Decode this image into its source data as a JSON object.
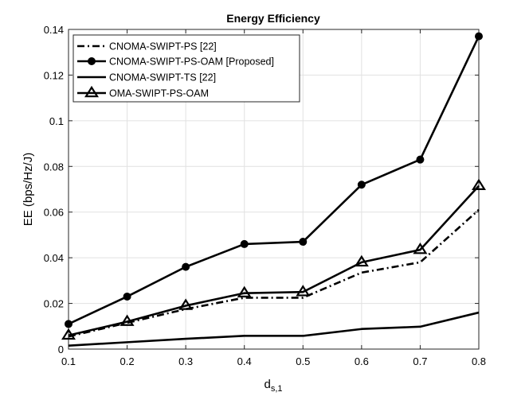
{
  "chart_data": {
    "type": "line",
    "title": "Energy Efficiency",
    "xlabel_main": "d",
    "xlabel_sub": "s,1",
    "ylabel": "EE (bps/Hz/J)",
    "x": [
      0.1,
      0.2,
      0.3,
      0.4,
      0.5,
      0.6,
      0.7,
      0.8
    ],
    "xlim": [
      0.1,
      0.8
    ],
    "ylim": [
      0,
      0.14
    ],
    "xticks": [
      "0.1",
      "0.2",
      "0.3",
      "0.4",
      "0.5",
      "0.6",
      "0.7",
      "0.8"
    ],
    "yticks": [
      "0",
      "0.02",
      "0.04",
      "0.06",
      "0.08",
      "0.1",
      "0.12",
      "0.14"
    ],
    "grid": true,
    "legend_position": "top-left",
    "series": [
      {
        "name": "CNOMA-SWIPT-PS [22]",
        "style": "dashdot",
        "marker": "none",
        "values": [
          0.0055,
          0.0115,
          0.0175,
          0.0225,
          0.0225,
          0.0335,
          0.038,
          0.061
        ]
      },
      {
        "name": "CNOMA-SWIPT-PS-OAM [Proposed]",
        "style": "solid",
        "marker": "circle",
        "values": [
          0.011,
          0.023,
          0.036,
          0.046,
          0.047,
          0.072,
          0.083,
          0.137
        ]
      },
      {
        "name": "CNOMA-SWIPT-TS [22]",
        "style": "solid",
        "marker": "none",
        "values": [
          0.0015,
          0.003,
          0.0045,
          0.0058,
          0.0058,
          0.0088,
          0.0098,
          0.016
        ]
      },
      {
        "name": "OMA-SWIPT-PS-OAM",
        "style": "solid",
        "marker": "triangle",
        "values": [
          0.006,
          0.012,
          0.019,
          0.0245,
          0.025,
          0.038,
          0.0435,
          0.0715
        ]
      }
    ]
  }
}
